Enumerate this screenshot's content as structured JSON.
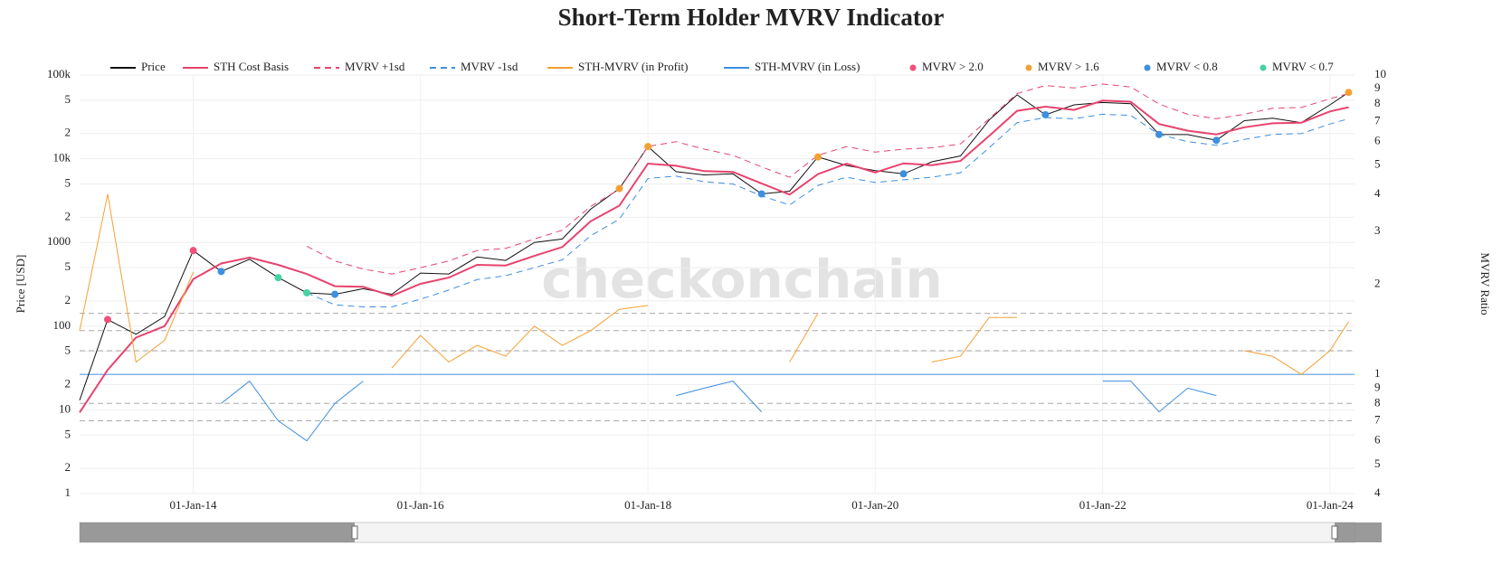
{
  "chart_data": {
    "type": "line",
    "title": "Short-Term Holder MVRV Indicator",
    "watermark": "checkonchain",
    "y_label": "Price [USD]",
    "y2_label": "MVRV Ratio",
    "log_y": true,
    "log_y2": true,
    "grid": true,
    "xlim": [
      "2013-01-01",
      "2024-03-20"
    ],
    "xticks": [
      {
        "value": "2014-01-01",
        "label": "01-Jan-14"
      },
      {
        "value": "2016-01-01",
        "label": "01-Jan-16"
      },
      {
        "value": "2018-01-01",
        "label": "01-Jan-18"
      },
      {
        "value": "2020-01-01",
        "label": "01-Jan-20"
      },
      {
        "value": "2022-01-01",
        "label": "01-Jan-22"
      },
      {
        "value": "2024-01-01",
        "label": "01-Jan-24"
      }
    ],
    "ylim": [
      1,
      100000
    ],
    "yticks": [
      {
        "value": 100000,
        "label": "100k"
      },
      {
        "value": 50000,
        "label": "5"
      },
      {
        "value": 20000,
        "label": "2"
      },
      {
        "value": 10000,
        "label": "10k"
      },
      {
        "value": 5000,
        "label": "5"
      },
      {
        "value": 2000,
        "label": "2"
      },
      1000,
      {
        "value": 500,
        "label": "5"
      },
      {
        "value": 200,
        "label": "2"
      },
      100,
      {
        "value": 50,
        "label": "5"
      },
      {
        "value": 20,
        "label": "2"
      },
      10,
      5,
      2,
      1
    ],
    "y2lim": [
      0.4,
      10
    ],
    "y2ticks": [
      10,
      9,
      8,
      7,
      6,
      5,
      4,
      3,
      2,
      1,
      {
        "value": 0.9,
        "label": "9"
      },
      {
        "value": 0.8,
        "label": "8"
      },
      {
        "value": 0.7,
        "label": "7"
      },
      {
        "value": 0.6,
        "label": "6"
      },
      {
        "value": 0.5,
        "label": "5"
      },
      {
        "value": 0.4,
        "label": "4"
      }
    ],
    "y2_reference_lines": [
      1.6,
      1.4,
      1.2,
      0.8,
      0.7
    ],
    "y2_baseline": 1,
    "x": [
      "2013-01-01",
      "2013-04-01",
      "2013-07-01",
      "2013-10-01",
      "2014-01-01",
      "2014-04-01",
      "2014-07-01",
      "2014-10-01",
      "2015-01-01",
      "2015-04-01",
      "2015-07-01",
      "2015-10-01",
      "2016-01-01",
      "2016-04-01",
      "2016-07-01",
      "2016-10-01",
      "2017-01-01",
      "2017-04-01",
      "2017-07-01",
      "2017-10-01",
      "2018-01-01",
      "2018-04-01",
      "2018-07-01",
      "2018-10-01",
      "2019-01-01",
      "2019-04-01",
      "2019-07-01",
      "2019-10-01",
      "2020-01-01",
      "2020-04-01",
      "2020-07-01",
      "2020-10-01",
      "2021-01-01",
      "2021-04-01",
      "2021-07-01",
      "2021-10-01",
      "2022-01-01",
      "2022-04-01",
      "2022-07-01",
      "2022-10-01",
      "2023-01-01",
      "2023-04-01",
      "2023-07-01",
      "2023-10-01",
      "2024-01-01",
      "2024-03-01"
    ],
    "series": [
      {
        "name": "Price",
        "color": "#111111",
        "axis": "y",
        "width": 1,
        "values": [
          13,
          120,
          80,
          130,
          800,
          450,
          630,
          380,
          250,
          240,
          280,
          240,
          430,
          420,
          670,
          610,
          1000,
          1100,
          2500,
          4400,
          14000,
          7000,
          6400,
          6600,
          3800,
          4100,
          10500,
          8300,
          7200,
          6600,
          9200,
          10800,
          29000,
          58000,
          33500,
          44000,
          47000,
          45500,
          19500,
          19400,
          16600,
          28500,
          30500,
          27000,
          44000,
          62000
        ]
      },
      {
        "name": "STH Cost Basis",
        "color": "#e8436e",
        "axis": "y",
        "width": 2,
        "values": [
          9.3,
          30,
          73,
          100,
          364,
          560,
          660,
          540,
          420,
          300,
          295,
          230,
          320,
          380,
          540,
          530,
          690,
          880,
          1790,
          2750,
          8750,
          8240,
          7110,
          6950,
          5070,
          3730,
          6560,
          8740,
          6860,
          8800,
          8360,
          9390,
          18700,
          37400,
          41900,
          38300,
          49500,
          47900,
          26000,
          21600,
          19500,
          23750,
          26500,
          27000,
          36700,
          41300
        ]
      },
      {
        "name": "MVRV +1sd",
        "color": "#e8436e",
        "axis": "y",
        "dash": true,
        "width": 1,
        "values": [
          null,
          null,
          null,
          null,
          null,
          null,
          null,
          null,
          900,
          600,
          480,
          420,
          500,
          600,
          800,
          850,
          1100,
          1400,
          2700,
          4300,
          14000,
          16000,
          13000,
          11000,
          8000,
          6000,
          11000,
          14000,
          12000,
          13000,
          13500,
          15000,
          30000,
          60000,
          75000,
          70000,
          78000,
          72000,
          45000,
          34000,
          30000,
          34000,
          40000,
          41000,
          52000,
          60000
        ]
      },
      {
        "name": "MVRV -1sd",
        "color": "#3d8fe0",
        "axis": "y",
        "dash": true,
        "width": 1,
        "values": [
          null,
          null,
          null,
          null,
          null,
          null,
          null,
          null,
          250,
          180,
          170,
          170,
          210,
          270,
          360,
          400,
          500,
          620,
          1200,
          1900,
          5800,
          6200,
          5300,
          5000,
          3600,
          2800,
          4800,
          6000,
          5200,
          5600,
          6000,
          6800,
          13500,
          27000,
          31000,
          30000,
          34000,
          33000,
          19500,
          16000,
          14500,
          17000,
          19500,
          20000,
          26000,
          30000
        ]
      },
      {
        "name": "STH-MVRV (in Profit)",
        "color": "#f5a033",
        "axis": "y2",
        "width": 1,
        "values": [
          1.4,
          4.0,
          1.1,
          1.3,
          2.2,
          null,
          null,
          null,
          null,
          null,
          null,
          1.05,
          1.35,
          1.1,
          1.25,
          1.15,
          1.45,
          1.25,
          1.4,
          1.65,
          1.7,
          null,
          null,
          null,
          null,
          1.1,
          1.6,
          null,
          1.05,
          null,
          1.1,
          1.15,
          1.55,
          1.55,
          null,
          1.15,
          null,
          null,
          null,
          null,
          null,
          1.2,
          1.15,
          1.0,
          1.2,
          1.5
        ]
      },
      {
        "name": "STH-MVRV (in Loss)",
        "color": "#3d8fe0",
        "axis": "y2",
        "width": 1,
        "values": [
          null,
          null,
          null,
          null,
          null,
          0.8,
          0.95,
          0.7,
          0.6,
          0.8,
          0.95,
          null,
          null,
          null,
          null,
          null,
          null,
          null,
          null,
          null,
          null,
          0.85,
          0.9,
          0.95,
          0.75,
          null,
          null,
          0.95,
          null,
          0.75,
          null,
          null,
          null,
          null,
          0.8,
          null,
          0.95,
          0.95,
          0.75,
          0.9,
          0.85,
          null,
          null,
          null,
          null,
          null
        ]
      },
      {
        "name": "MVRV > 2.0",
        "color": "#f0507a",
        "axis": "y",
        "mode": "markers",
        "values": [
          null,
          120,
          null,
          null,
          800,
          null,
          null,
          null,
          null,
          null,
          null,
          null,
          null,
          null,
          null,
          null,
          null,
          null,
          null,
          null,
          null,
          null,
          null,
          null,
          null,
          null,
          null,
          null,
          null,
          null,
          null,
          null,
          null,
          null,
          null,
          null,
          null,
          null,
          null,
          null,
          null,
          null,
          null,
          null,
          null,
          null
        ]
      },
      {
        "name": "MVRV > 1.6",
        "color": "#f5a033",
        "axis": "y",
        "mode": "markers",
        "values": [
          null,
          null,
          null,
          null,
          null,
          null,
          null,
          null,
          null,
          null,
          null,
          null,
          null,
          null,
          null,
          null,
          null,
          null,
          null,
          4400,
          14000,
          null,
          null,
          null,
          null,
          null,
          10500,
          null,
          null,
          null,
          null,
          null,
          null,
          null,
          null,
          null,
          null,
          null,
          null,
          null,
          null,
          null,
          null,
          null,
          null,
          62000
        ]
      },
      {
        "name": "MVRV < 0.8",
        "color": "#3d8fe0",
        "axis": "y",
        "mode": "markers",
        "values": [
          null,
          null,
          null,
          null,
          null,
          450,
          null,
          null,
          null,
          240,
          null,
          null,
          null,
          null,
          null,
          null,
          null,
          null,
          null,
          null,
          null,
          null,
          null,
          null,
          3800,
          null,
          null,
          null,
          null,
          6600,
          null,
          null,
          null,
          null,
          33500,
          null,
          null,
          null,
          19500,
          null,
          16600,
          null,
          null,
          null,
          null,
          null
        ]
      },
      {
        "name": "MVRV < 0.7",
        "color": "#45d3a0",
        "axis": "y",
        "mode": "markers",
        "values": [
          null,
          null,
          null,
          null,
          null,
          null,
          null,
          380,
          250,
          null,
          null,
          null,
          null,
          null,
          null,
          null,
          null,
          null,
          null,
          null,
          null,
          null,
          null,
          null,
          null,
          null,
          null,
          null,
          null,
          null,
          null,
          null,
          null,
          null,
          null,
          null,
          null,
          null,
          null,
          null,
          null,
          null,
          null,
          null,
          null,
          null
        ]
      }
    ]
  }
}
